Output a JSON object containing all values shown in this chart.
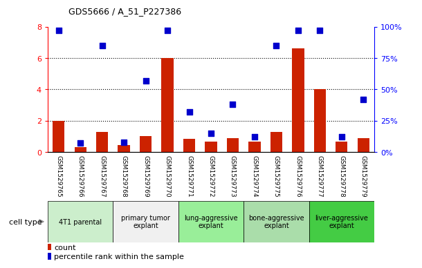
{
  "title": "GDS5666 / A_51_P227386",
  "samples": [
    "GSM1529765",
    "GSM1529766",
    "GSM1529767",
    "GSM1529768",
    "GSM1529769",
    "GSM1529770",
    "GSM1529771",
    "GSM1529772",
    "GSM1529773",
    "GSM1529774",
    "GSM1529775",
    "GSM1529776",
    "GSM1529777",
    "GSM1529778",
    "GSM1529779"
  ],
  "counts": [
    2.0,
    0.3,
    1.3,
    0.45,
    1.0,
    6.0,
    0.85,
    0.65,
    0.9,
    0.65,
    1.3,
    6.6,
    4.0,
    0.65,
    0.9
  ],
  "percentiles": [
    97,
    7,
    85,
    8,
    57,
    97,
    32,
    15,
    38,
    12,
    85,
    97,
    97,
    12,
    42
  ],
  "ylim_left": [
    0,
    8
  ],
  "ylim_right": [
    0,
    100
  ],
  "yticks_left": [
    0,
    2,
    4,
    6,
    8
  ],
  "yticks_right": [
    0,
    25,
    50,
    75,
    100
  ],
  "ytick_labels_right": [
    "0%",
    "25%",
    "50%",
    "75%",
    "100%"
  ],
  "bar_color": "#CC2200",
  "dot_color": "#0000CC",
  "grid_color": "#000000",
  "bg_color": "#C8C8C8",
  "cell_types": [
    {
      "label": "4T1 parental",
      "start": 0,
      "end": 3,
      "color": "#CCEECC"
    },
    {
      "label": "primary tumor\nexplant",
      "start": 3,
      "end": 6,
      "color": "#F0F0F0"
    },
    {
      "label": "lung-aggressive\nexplant",
      "start": 6,
      "end": 9,
      "color": "#99EE99"
    },
    {
      "label": "bone-aggressive\nexplant",
      "start": 9,
      "end": 12,
      "color": "#AADDAA"
    },
    {
      "label": "liver-aggressive\nexplant",
      "start": 12,
      "end": 15,
      "color": "#44CC44"
    }
  ],
  "bar_width": 0.55,
  "dot_size": 28,
  "legend_bar_label": "count",
  "legend_dot_label": "percentile rank within the sample"
}
